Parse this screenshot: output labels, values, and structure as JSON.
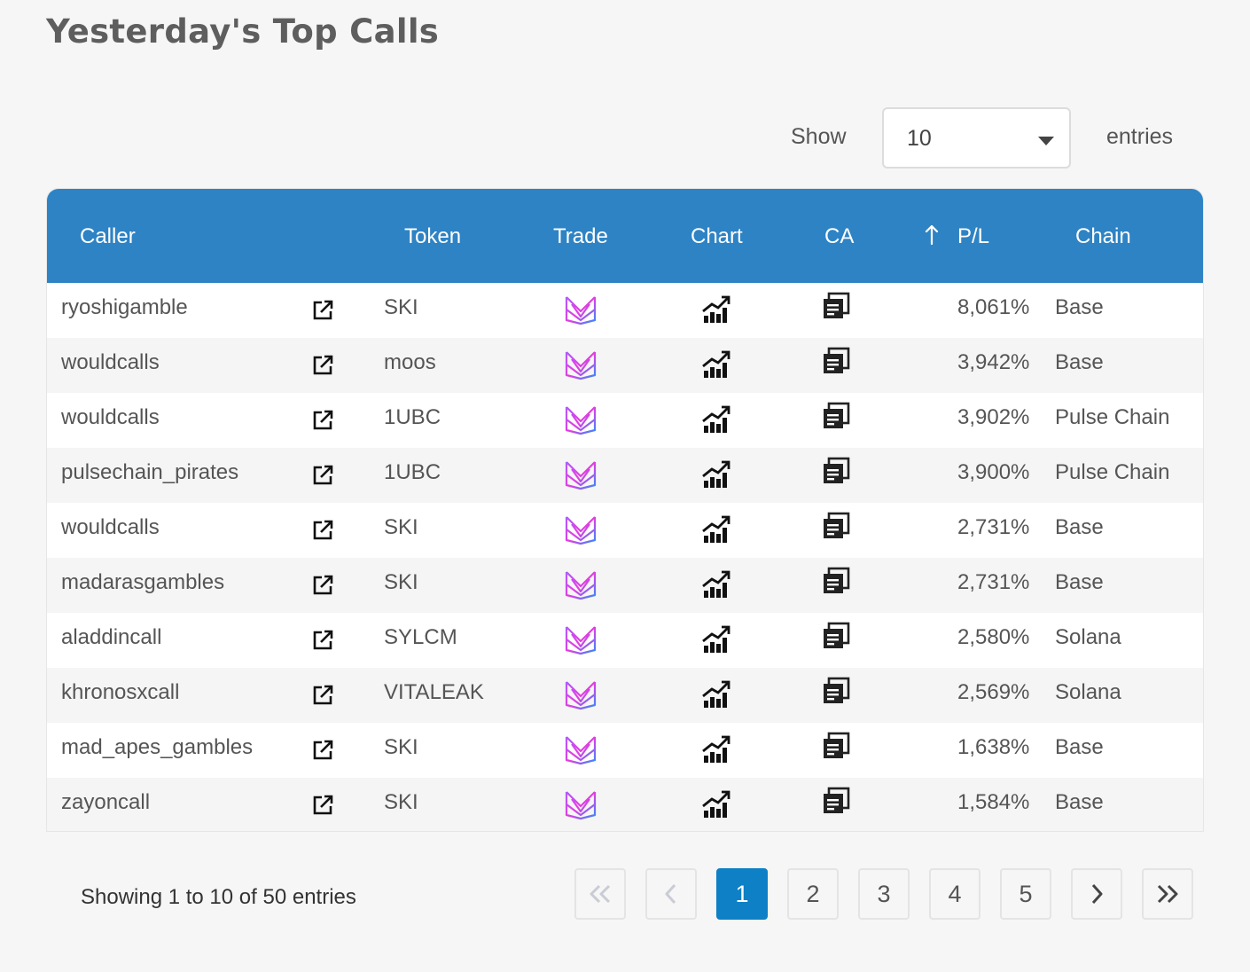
{
  "title": "Yesterday's Top Calls",
  "length_menu": {
    "show_label": "Show",
    "value": "10",
    "entries_label": "entries"
  },
  "table": {
    "headers": {
      "caller": "Caller",
      "token": "Token",
      "trade": "Trade",
      "chart": "Chart",
      "ca": "CA",
      "pl": "P/L",
      "chain": "Chain"
    },
    "sorted_column": "P/L",
    "rows": [
      {
        "caller": "ryoshigamble",
        "token": "SKI",
        "pl": "8,061%",
        "chain": "Base"
      },
      {
        "caller": "wouldcalls",
        "token": "moos",
        "pl": "3,942%",
        "chain": "Base"
      },
      {
        "caller": "wouldcalls",
        "token": "1UBC",
        "pl": "3,902%",
        "chain": "Pulse Chain"
      },
      {
        "caller": "pulsechain_pirates",
        "token": "1UBC",
        "pl": "3,900%",
        "chain": "Pulse Chain"
      },
      {
        "caller": "wouldcalls",
        "token": "SKI",
        "pl": "2,731%",
        "chain": "Base"
      },
      {
        "caller": "madarasgambles",
        "token": "SKI",
        "pl": "2,731%",
        "chain": "Base"
      },
      {
        "caller": "aladdincall",
        "token": "SYLCM",
        "pl": "2,580%",
        "chain": "Solana"
      },
      {
        "caller": "khronosxcall",
        "token": "VITALEAK",
        "pl": "2,569%",
        "chain": "Solana"
      },
      {
        "caller": "mad_apes_gambles",
        "token": "SKI",
        "pl": "1,638%",
        "chain": "Base"
      },
      {
        "caller": "zayoncall",
        "token": "SKI",
        "pl": "1,584%",
        "chain": "Base"
      }
    ],
    "row_icons": {
      "caller_link": "external-link-icon",
      "trade": "trade-logo-icon",
      "chart": "chart-icon",
      "ca": "copy-icon"
    }
  },
  "pagination": {
    "info": "Showing 1 to 10 of 50 entries",
    "pages": [
      "1",
      "2",
      "3",
      "4",
      "5"
    ],
    "current": "1",
    "icons": {
      "first": "double-chevron-left-icon",
      "prev": "chevron-left-icon",
      "next": "chevron-right-icon",
      "last": "double-chevron-right-icon"
    }
  },
  "colors": {
    "header_bg": "#2e83c4",
    "active_page": "#0d80c6",
    "page_bg": "#f6f6f6"
  }
}
